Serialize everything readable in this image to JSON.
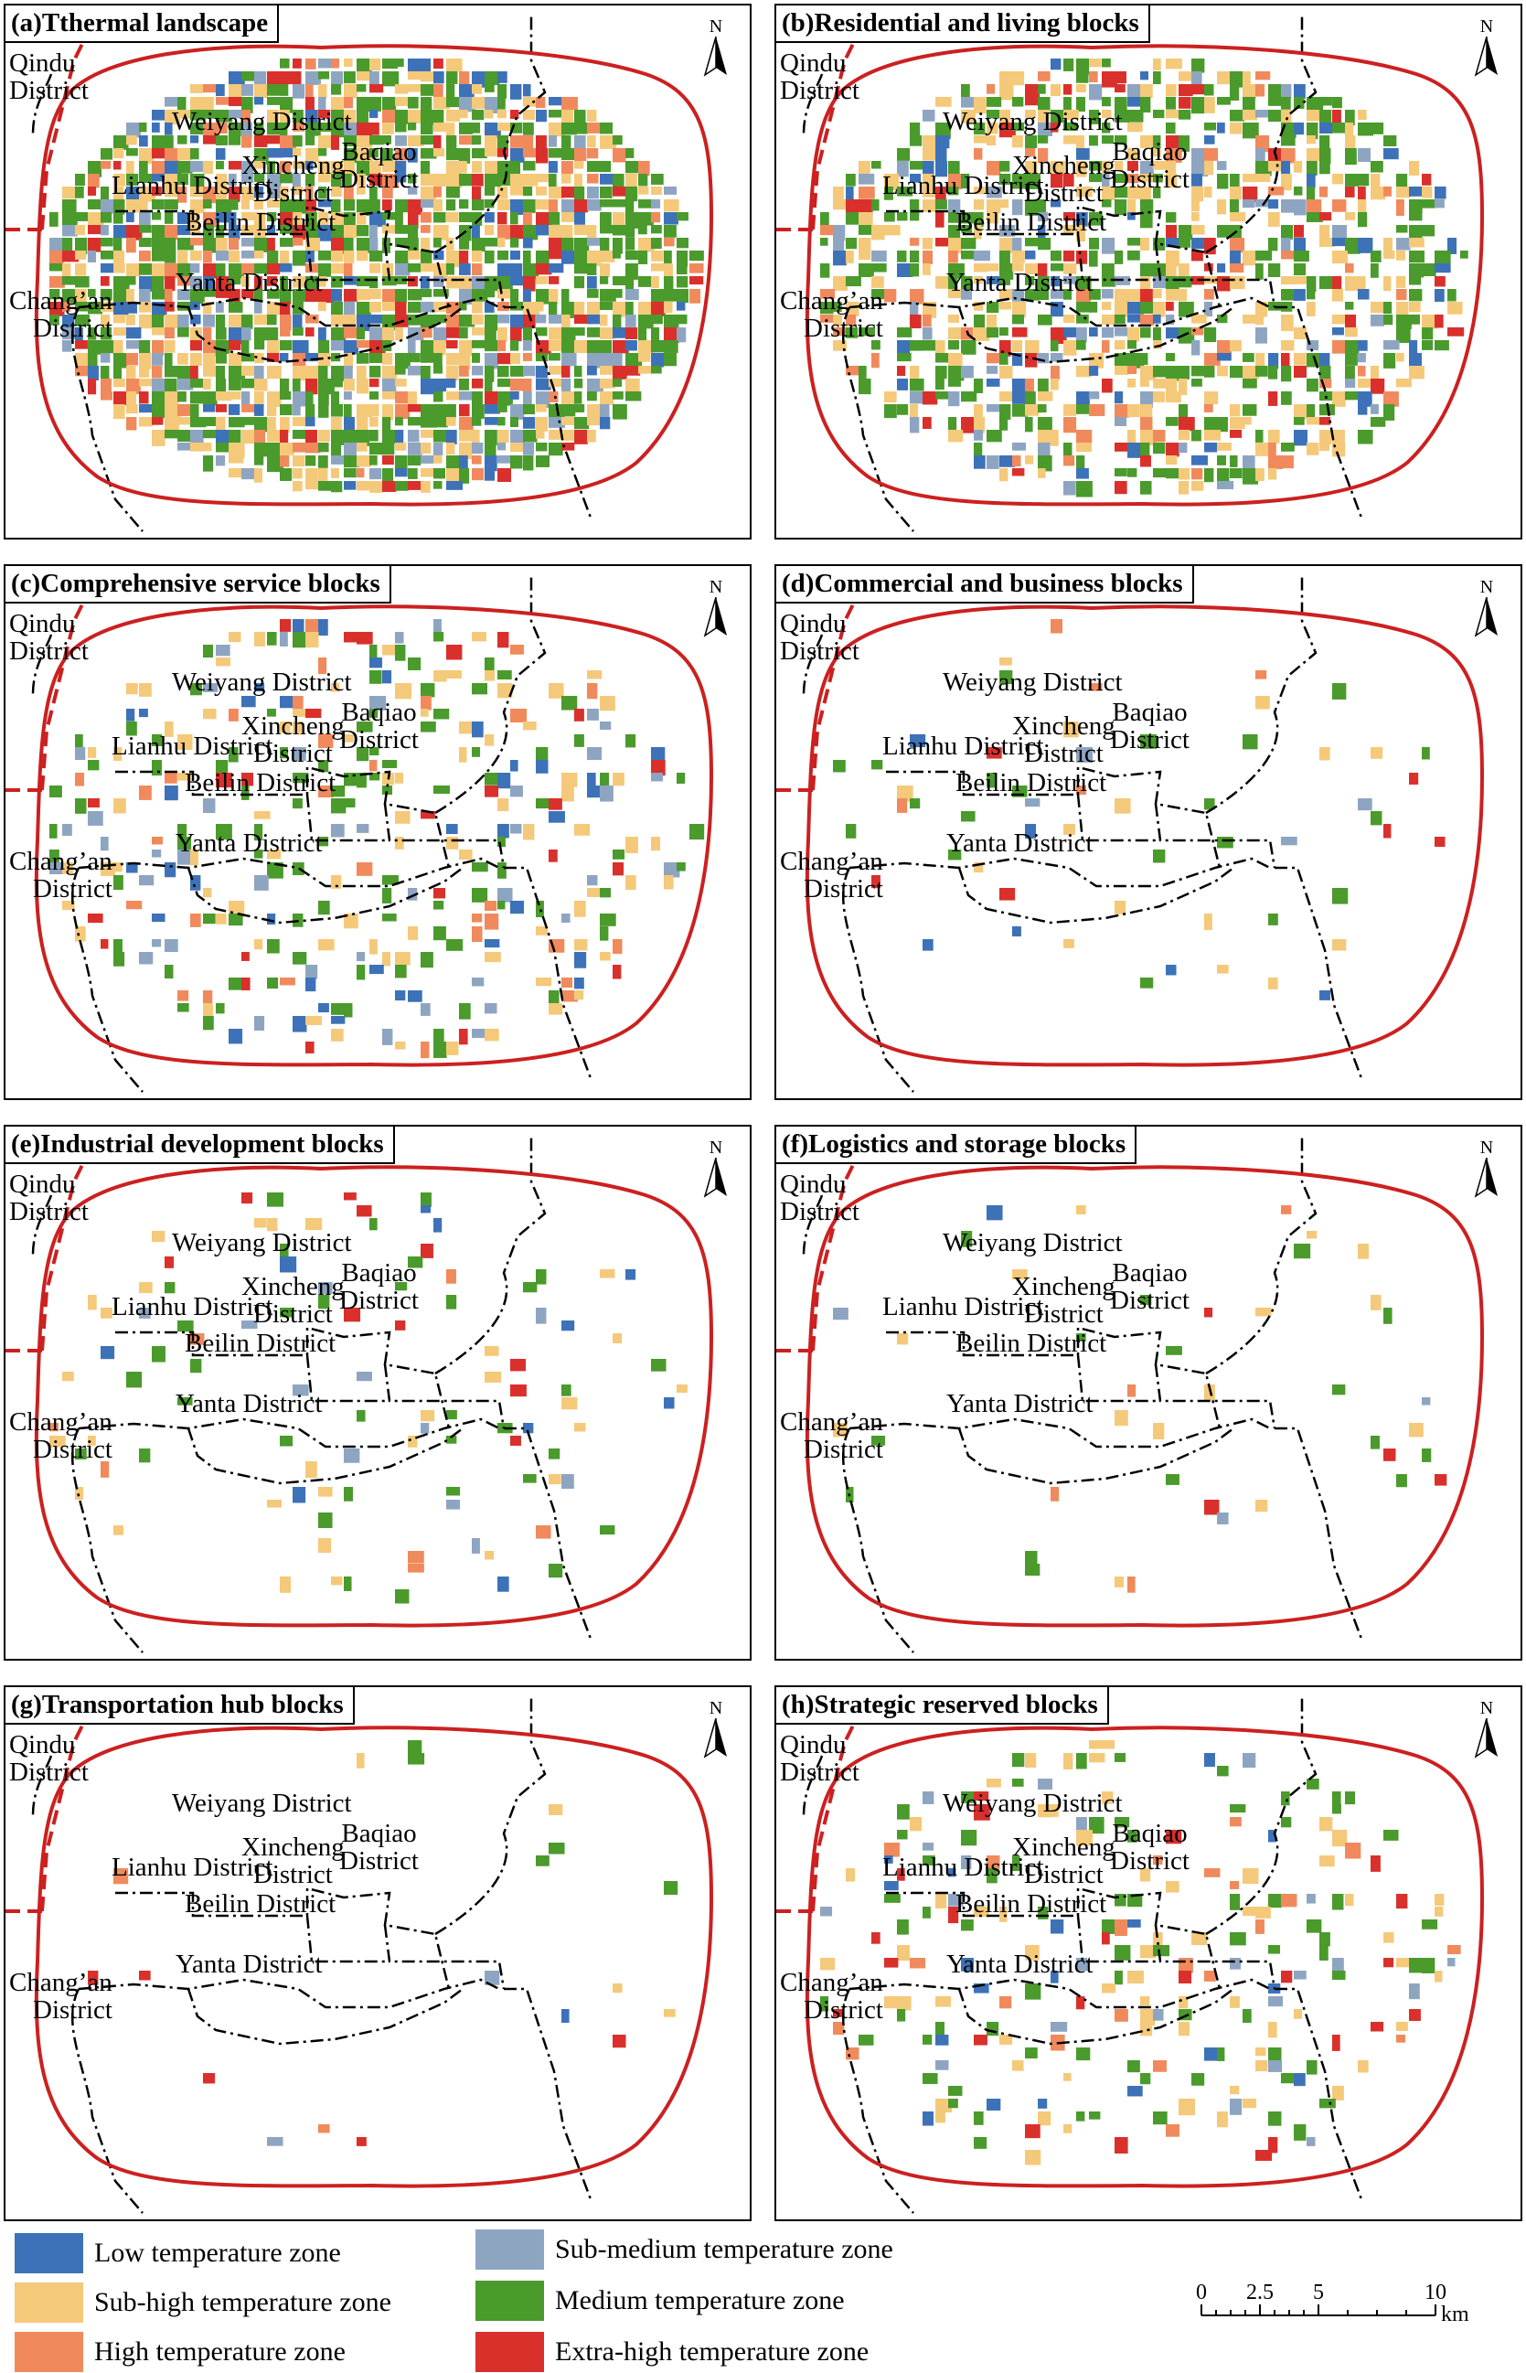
{
  "panels": [
    {
      "id": "a",
      "title": "(a)Tthermal landscape",
      "density": 0.95
    },
    {
      "id": "b",
      "title": "(b)Residential and living blocks",
      "density": 0.62
    },
    {
      "id": "c",
      "title": "(c)Comprehensive service blocks",
      "density": 0.22
    },
    {
      "id": "d",
      "title": "(d)Commercial and business blocks",
      "density": 0.04
    },
    {
      "id": "e",
      "title": "(e)Industrial development blocks",
      "density": 0.06
    },
    {
      "id": "f",
      "title": "(f)Logistics and storage blocks",
      "density": 0.03
    },
    {
      "id": "g",
      "title": "(g)Transportation hub blocks",
      "density": 0.015
    },
    {
      "id": "h",
      "title": "(h)Strategic reserved blocks",
      "density": 0.18
    }
  ],
  "districts": {
    "qindu": [
      "Qindu",
      "District"
    ],
    "weiyang": "Weiyang District",
    "baqiao": [
      "Baqiao",
      "District"
    ],
    "xincheng": [
      "Xincheng",
      "District"
    ],
    "lianhu": "Lianhu District",
    "beilin": "Beilin District",
    "yanta": "Yanta District",
    "changan": [
      "Chang’an",
      "District"
    ]
  },
  "north_label": "N",
  "legend": [
    {
      "label": "Low temperature zone",
      "color": "#3d72b8"
    },
    {
      "label": "Sub-medium temperature zone",
      "color": "#8ea5c2"
    },
    {
      "label": "Sub-high temperature zone",
      "color": "#f5c97a"
    },
    {
      "label": "Medium temperature zone",
      "color": "#4a9a2c"
    },
    {
      "label": "High temperature zone",
      "color": "#f08a5c"
    },
    {
      "label": "Extra-high temperature zone",
      "color": "#d9302c"
    }
  ],
  "scale": {
    "ticks": [
      "0",
      "2.5",
      "5",
      "10"
    ],
    "unit": "km"
  },
  "colors": {
    "boundary": "#cc2020"
  }
}
